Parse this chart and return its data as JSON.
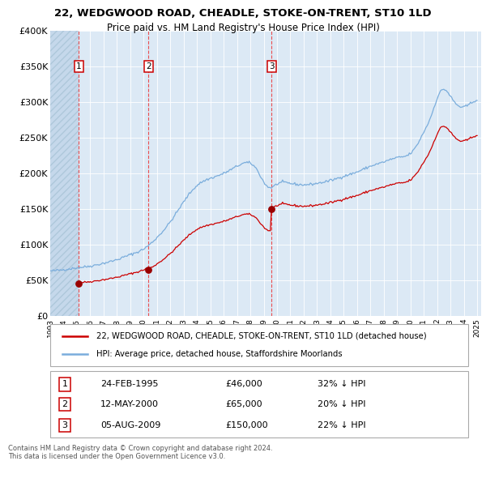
{
  "title1": "22, WEDGWOOD ROAD, CHEADLE, STOKE-ON-TRENT, ST10 1LD",
  "title2": "Price paid vs. HM Land Registry's House Price Index (HPI)",
  "legend_line1": "22, WEDGWOOD ROAD, CHEADLE, STOKE-ON-TRENT, ST10 1LD (detached house)",
  "legend_line2": "HPI: Average price, detached house, Staffordshire Moorlands",
  "sale1_date": "24-FEB-1995",
  "sale1_year": 1995.14,
  "sale1_price": 46000,
  "sale2_date": "12-MAY-2000",
  "sale2_year": 2000.36,
  "sale2_price": 65000,
  "sale3_date": "05-AUG-2009",
  "sale3_year": 2009.59,
  "sale3_price": 150000,
  "table_rows": [
    [
      "1",
      "24-FEB-1995",
      "£46,000",
      "32% ↓ HPI"
    ],
    [
      "2",
      "12-MAY-2000",
      "£65,000",
      "20% ↓ HPI"
    ],
    [
      "3",
      "05-AUG-2009",
      "£150,000",
      "22% ↓ HPI"
    ]
  ],
  "copyright_text": "Contains HM Land Registry data © Crown copyright and database right 2024.\nThis data is licensed under the Open Government Licence v3.0.",
  "hpi_line_color": "#7aaddc",
  "price_line_color": "#cc0000",
  "sale_dot_color": "#990000",
  "vline_color": "#ee3333",
  "background_chart": "#dce9f5",
  "background_hatch_color": "#c5d8eb",
  "ylim_max": 400000,
  "yticks": [
    0,
    50000,
    100000,
    150000,
    200000,
    250000,
    300000,
    350000,
    400000
  ],
  "ytick_labels": [
    "£0",
    "£50K",
    "£100K",
    "£150K",
    "£200K",
    "£250K",
    "£300K",
    "£350K",
    "£400K"
  ],
  "xstart": 1993.0,
  "xend": 2025.3,
  "hpi_anchors_x": [
    1993.0,
    1994.0,
    1995.0,
    1996.0,
    1997.0,
    1998.0,
    1999.0,
    2000.0,
    2001.0,
    2002.0,
    2003.0,
    2004.0,
    2005.0,
    2006.0,
    2007.0,
    2007.8,
    2008.5,
    2009.0,
    2009.5,
    2010.0,
    2011.0,
    2012.0,
    2013.0,
    2014.0,
    2015.0,
    2016.0,
    2017.0,
    2018.0,
    2019.0,
    2020.0,
    2020.5,
    2021.0,
    2021.5,
    2022.0,
    2022.5,
    2023.0,
    2023.5,
    2024.0,
    2024.5,
    2025.0
  ],
  "hpi_anchors_y": [
    63000,
    65000,
    67500,
    70000,
    74000,
    79000,
    86000,
    94000,
    110000,
    132000,
    160000,
    183000,
    193000,
    200000,
    210000,
    215000,
    205000,
    188000,
    180000,
    185000,
    186000,
    184000,
    186000,
    190000,
    196000,
    202000,
    210000,
    216000,
    222000,
    228000,
    240000,
    258000,
    278000,
    305000,
    318000,
    308000,
    296000,
    293000,
    298000,
    303000
  ],
  "noise_seed": 42
}
